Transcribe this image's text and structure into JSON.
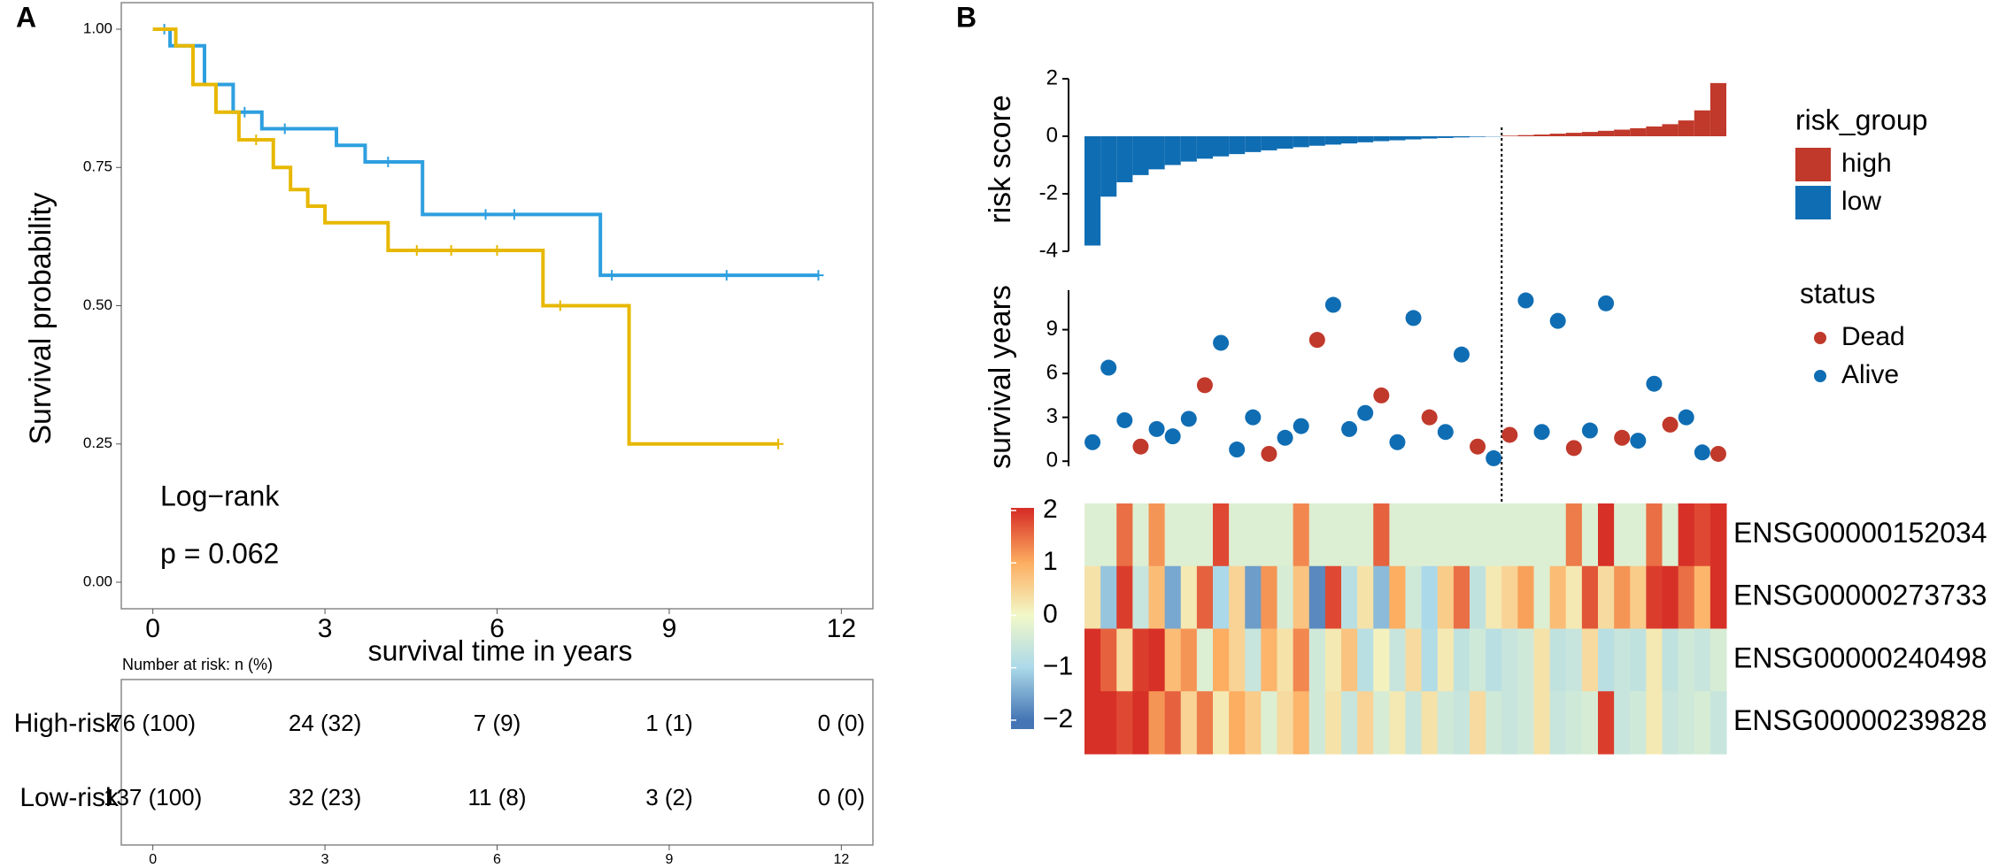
{
  "chart_data": [
    {
      "type": "step",
      "panel": "A",
      "xlabel": "survival time in years",
      "ylabel": "Survival probability",
      "annotations": [
        "Log−rank",
        "p = 0.062"
      ],
      "xlim": [
        -0.55,
        12.55
      ],
      "xticks": [
        0,
        3,
        6,
        9,
        12
      ],
      "ylim": [
        -0.048,
        1.048
      ],
      "yticks": [
        {
          "value": 0,
          "label": "0.00"
        },
        {
          "value": 0.25,
          "label": "0.25"
        },
        {
          "value": 0.5,
          "label": "0.50"
        },
        {
          "value": 0.75,
          "label": "0.75"
        },
        {
          "value": 1,
          "label": "1.00"
        }
      ],
      "series": [
        {
          "name": "Low-risk",
          "color": "#2E9FDF",
          "x": [
            0,
            0.3,
            0.9,
            1.4,
            1.9,
            3.2,
            3.7,
            4.7,
            7.8,
            11.6
          ],
          "values": [
            1,
            0.97,
            0.9,
            0.85,
            0.82,
            0.79,
            0.76,
            0.665,
            0.555,
            0.555
          ],
          "censor_x": [
            0.2,
            1.6,
            2.3,
            4.1,
            5.8,
            6.3,
            8.0,
            10.0,
            11.6
          ],
          "censor_y": [
            1,
            0.85,
            0.82,
            0.76,
            0.665,
            0.665,
            0.555,
            0.555,
            0.555
          ]
        },
        {
          "name": "High-risk",
          "color": "#E7B800",
          "x": [
            0,
            0.4,
            0.7,
            1.1,
            1.5,
            2.1,
            2.4,
            2.7,
            3.0,
            4.1,
            6.8,
            8.3,
            10.9
          ],
          "values": [
            1,
            0.97,
            0.9,
            0.85,
            0.8,
            0.75,
            0.71,
            0.68,
            0.65,
            0.6,
            0.5,
            0.25,
            0.25
          ],
          "censor_x": [
            1.8,
            4.6,
            5.2,
            6.0,
            7.1,
            10.9
          ],
          "censor_y": [
            0.8,
            0.6,
            0.6,
            0.6,
            0.5,
            0.25
          ]
        }
      ],
      "risk_table": {
        "title": "Number at risk: n (%)",
        "xticks": [
          0,
          3,
          6,
          9,
          12
        ],
        "rows": [
          {
            "name": "High-risk",
            "color": "#E7B800",
            "cells": [
              "76 (100)",
              "24 (32)",
              "7 (9)",
              "1 (1)",
              "0 (0)"
            ]
          },
          {
            "name": "Low-risk",
            "color": "#2E9FDF",
            "cells": [
              "137 (100)",
              "32 (23)",
              "11 (8)",
              "3 (2)",
              "0 (0)"
            ]
          }
        ]
      }
    },
    {
      "type": "bar",
      "panel": "B",
      "ylabel": "risk score",
      "legend_title": "risk_group",
      "xlim": [
        0.5,
        40.5
      ],
      "ylim": [
        -4,
        2
      ],
      "yticks": [
        -4,
        -2,
        0,
        2
      ],
      "threshold_x": 26.5,
      "series": [
        {
          "name": "high",
          "color": "#C0392B",
          "values": [
            null,
            null,
            null,
            null,
            null,
            null,
            null,
            null,
            null,
            null,
            null,
            null,
            null,
            null,
            null,
            null,
            null,
            null,
            null,
            null,
            null,
            null,
            null,
            null,
            null,
            null,
            0.02,
            0.04,
            0.06,
            0.09,
            0.12,
            0.15,
            0.19,
            0.23,
            0.28,
            0.34,
            0.42,
            0.55,
            0.9,
            1.85
          ]
        },
        {
          "name": "low",
          "color": "#0F6DB3",
          "values": [
            -3.8,
            -2.1,
            -1.6,
            -1.35,
            -1.15,
            -1.0,
            -0.88,
            -0.78,
            -0.7,
            -0.62,
            -0.55,
            -0.49,
            -0.43,
            -0.38,
            -0.33,
            -0.29,
            -0.25,
            -0.21,
            -0.17,
            -0.14,
            -0.11,
            -0.08,
            -0.06,
            -0.04,
            -0.02,
            -0.01,
            null,
            null,
            null,
            null,
            null,
            null,
            null,
            null,
            null,
            null,
            null,
            null,
            null,
            null
          ]
        }
      ]
    },
    {
      "type": "scatter",
      "ylabel": "survival years",
      "legend_title": "status",
      "xlim": [
        0.5,
        40.5
      ],
      "ylim": [
        -0.35,
        11.7
      ],
      "yticks": [
        0,
        3,
        6,
        9
      ],
      "series": [
        {
          "name": "Dead",
          "color": "#C0392B",
          "x": [
            4,
            8,
            12,
            15,
            19,
            22,
            25,
            27,
            31,
            34,
            37,
            40
          ],
          "values": [
            1.0,
            5.2,
            0.5,
            8.3,
            4.5,
            3.0,
            1.0,
            1.8,
            0.9,
            1.6,
            2.5,
            0.5
          ]
        },
        {
          "name": "Alive",
          "color": "#0F6DB3",
          "x": [
            1,
            2,
            3,
            5,
            6,
            7,
            9,
            10,
            11,
            13,
            14,
            16,
            17,
            18,
            20,
            21,
            23,
            24,
            26,
            28,
            29,
            30,
            32,
            33,
            35,
            36,
            38,
            39
          ],
          "values": [
            1.3,
            6.4,
            2.8,
            2.2,
            1.7,
            2.9,
            8.1,
            0.8,
            3.0,
            1.6,
            2.4,
            10.7,
            2.2,
            3.3,
            1.3,
            9.8,
            2.0,
            7.3,
            0.2,
            11.0,
            2.0,
            9.6,
            2.1,
            10.8,
            1.4,
            5.3,
            3.0,
            0.6
          ]
        }
      ]
    },
    {
      "type": "heatmap",
      "clim": [
        -2.17,
        2.05
      ],
      "colorbar_ticks": [
        {
          "value": -2,
          "label": "−2"
        },
        {
          "value": -1,
          "label": "−1"
        },
        0,
        1,
        2
      ],
      "colors": [
        "#4575B4",
        "#ABD9E9",
        "#F2F8C8",
        "#FDAE61",
        "#D73027"
      ],
      "rows": [
        "ENSG00000152034",
        "ENSG00000273733",
        "ENSG00000240498",
        "ENSG00000239828"
      ],
      "values": [
        [
          -0.3,
          -0.3,
          1.5,
          -0.3,
          1.2,
          -0.3,
          -0.3,
          -0.3,
          1.8,
          -0.3,
          -0.3,
          -0.3,
          -0.3,
          1.3,
          -0.3,
          -0.3,
          -0.3,
          -0.3,
          1.6,
          -0.3,
          -0.3,
          -0.3,
          -0.3,
          -0.3,
          -0.3,
          -0.3,
          -0.3,
          -0.3,
          -0.3,
          -0.3,
          1.4,
          -0.3,
          2.0,
          -0.3,
          -0.3,
          1.5,
          -0.3,
          2.0,
          1.8,
          2.0
        ],
        [
          0.3,
          -1.2,
          1.9,
          -0.6,
          0.8,
          -1.5,
          0.2,
          1.6,
          -1.0,
          0.5,
          -1.6,
          1.2,
          -0.4,
          0.7,
          -1.8,
          1.8,
          -0.8,
          0.3,
          -1.3,
          1.0,
          -0.5,
          -1.0,
          0.6,
          1.5,
          -0.7,
          0.2,
          0.5,
          1.1,
          -0.3,
          0.8,
          0.2,
          1.7,
          0.4,
          1.2,
          0.6,
          1.9,
          2.0,
          1.5,
          0.9,
          2.0
        ],
        [
          2.0,
          1.6,
          0.4,
          1.9,
          2.0,
          0.8,
          1.2,
          -0.3,
          1.0,
          0.5,
          -0.6,
          0.9,
          0.3,
          1.3,
          -0.5,
          0.2,
          0.7,
          -0.8,
          0.1,
          -0.6,
          0.4,
          -0.9,
          0.2,
          -0.7,
          -0.5,
          -0.8,
          -0.6,
          -0.5,
          0.3,
          -0.7,
          -0.6,
          0.4,
          -0.8,
          -0.6,
          -0.7,
          0.2,
          -0.7,
          -0.5,
          -0.6,
          -0.4
        ],
        [
          2.0,
          2.0,
          1.8,
          2.0,
          1.2,
          1.6,
          0.5,
          1.4,
          0.2,
          1.0,
          0.6,
          -0.3,
          0.4,
          0.9,
          -0.5,
          0.3,
          -0.6,
          0.5,
          -0.4,
          0.2,
          -0.6,
          0.3,
          -0.5,
          -0.6,
          0.4,
          -0.5,
          -0.6,
          -0.5,
          0.3,
          -0.6,
          -0.5,
          -0.4,
          1.9,
          -0.6,
          -0.5,
          0.2,
          -0.6,
          -0.5,
          -0.4,
          -0.6
        ]
      ]
    }
  ]
}
